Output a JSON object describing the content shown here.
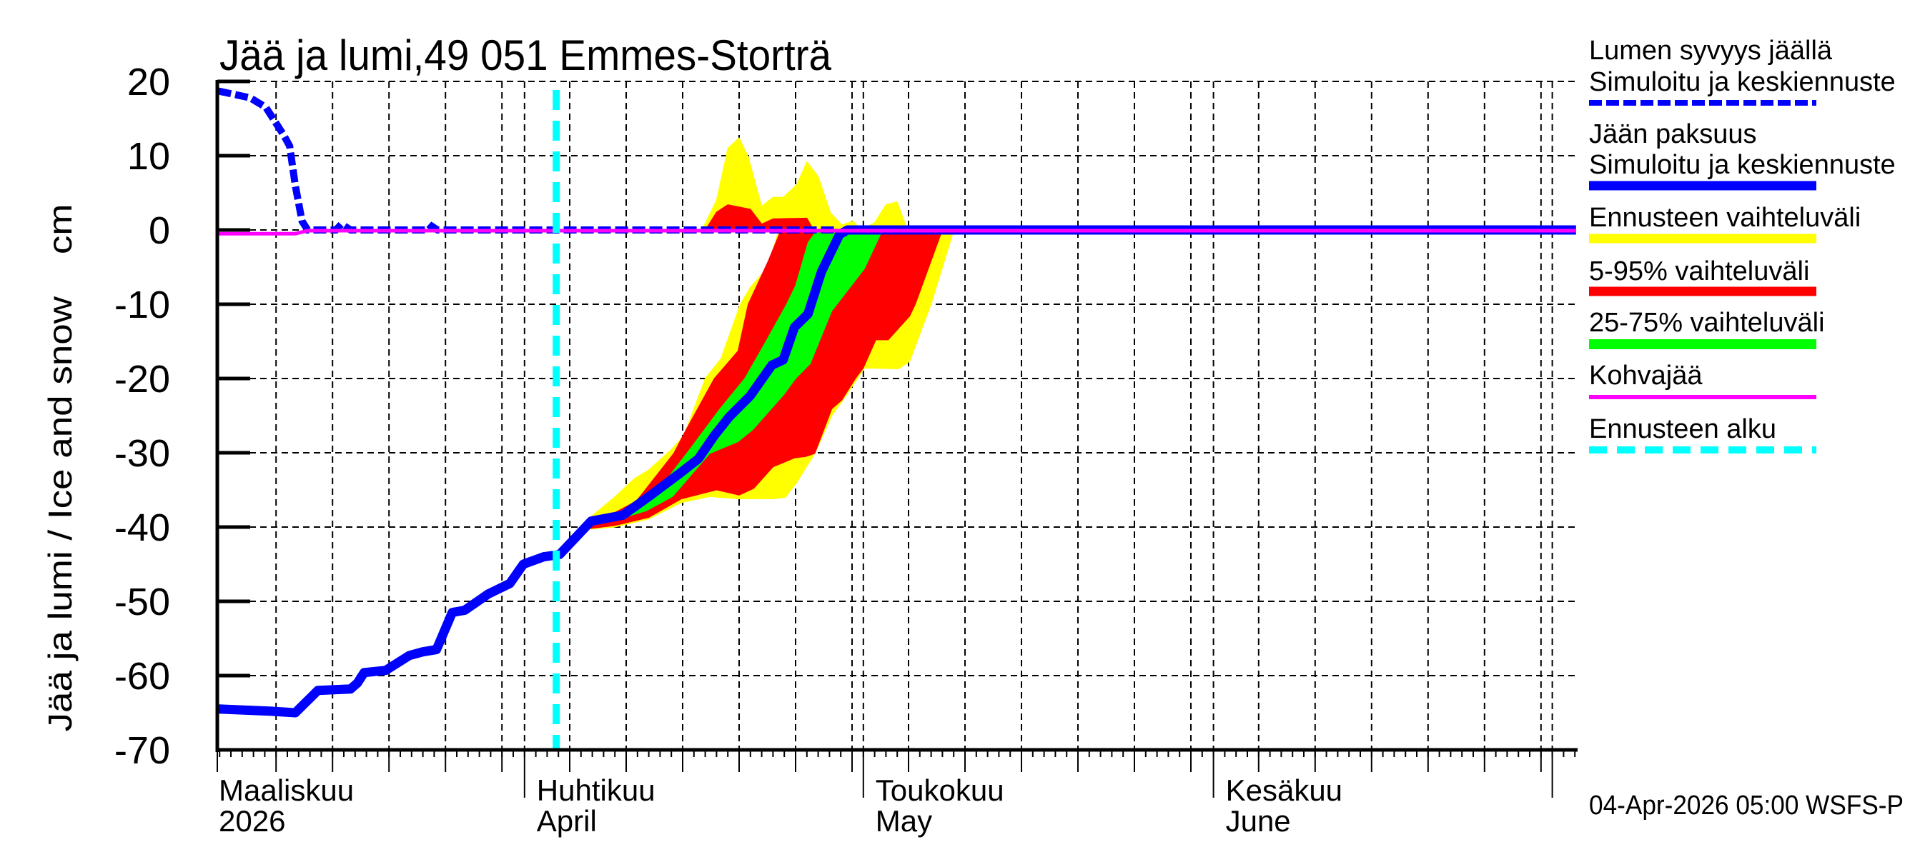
{
  "chart_data": {
    "type": "area",
    "title": "Jää ja lumi,49 051 Emmes-Storträ",
    "ylabel": "Jää ja lumi / Ice and snow    cm",
    "xlabel": "",
    "ylim": [
      -70,
      20
    ],
    "yticks": [
      20,
      10,
      0,
      -10,
      -20,
      -30,
      -40,
      -50,
      -60,
      -70
    ],
    "x_unit": "days since 1 March 2026",
    "xlim": [
      3.9,
      124.1
    ],
    "grid": true,
    "legend_position": "right",
    "month_labels": [
      {
        "day": 0,
        "fi": "Maaliskuu",
        "en": "2026"
      },
      {
        "day": 31,
        "fi": "Huhtikuu",
        "en": "April"
      },
      {
        "day": 61,
        "fi": "Toukokuu",
        "en": "May"
      },
      {
        "day": 92,
        "fi": "Kesäkuu",
        "en": "June"
      }
    ],
    "month_starts": [
      0,
      31,
      61,
      92,
      122
    ],
    "grid_days": [
      9,
      14,
      19,
      24,
      29,
      31,
      35,
      40,
      45,
      50,
      55,
      60,
      61,
      65,
      70,
      75,
      80,
      85,
      90,
      92,
      96,
      101,
      106,
      111,
      116,
      121,
      122
    ],
    "forecast_start_day": 34,
    "series": [
      {
        "name": "Lumen syvyys jäällä — Simuloitu ja keskiennuste",
        "color": "#0000ff",
        "style": "dashed",
        "points": [
          [
            3.9,
            18.7
          ],
          [
            6.7,
            17.8
          ],
          [
            8.1,
            16.5
          ],
          [
            9.7,
            12.7
          ],
          [
            10.2,
            11.3
          ],
          [
            10.7,
            6.0
          ],
          [
            11.3,
            1.2
          ],
          [
            11.8,
            0
          ],
          [
            14.3,
            0
          ],
          [
            14.8,
            0.8
          ],
          [
            15.6,
            0
          ],
          [
            22.5,
            0
          ],
          [
            22.8,
            0.5
          ],
          [
            23.3,
            0
          ],
          [
            58.7,
            0
          ]
        ]
      },
      {
        "name": "Jään paksuus — Simuloitu ja keskiennuste",
        "color": "#0000ff",
        "style": "solid",
        "points": [
          [
            3.9,
            -64.5
          ],
          [
            8.6,
            -64.8
          ],
          [
            10.7,
            -65.0
          ],
          [
            12.7,
            -62.0
          ],
          [
            15.6,
            -61.8
          ],
          [
            16.2,
            -61.0
          ],
          [
            16.8,
            -59.6
          ],
          [
            18.7,
            -59.3
          ],
          [
            20.8,
            -57.3
          ],
          [
            22.0,
            -56.8
          ],
          [
            23.2,
            -56.5
          ],
          [
            24.6,
            -51.5
          ],
          [
            25.7,
            -51.2
          ],
          [
            27.8,
            -49.0
          ],
          [
            29.7,
            -47.6
          ],
          [
            30.9,
            -45.0
          ],
          [
            32.7,
            -44.0
          ],
          [
            34.1,
            -43.7
          ],
          [
            36.9,
            -39.2
          ],
          [
            39.7,
            -38.4
          ],
          [
            42.0,
            -35.9
          ],
          [
            44.9,
            -32.6
          ],
          [
            46.4,
            -30.8
          ],
          [
            47.8,
            -27.7
          ],
          [
            49.1,
            -25.2
          ],
          [
            51.0,
            -22.3
          ],
          [
            52.9,
            -18.2
          ],
          [
            53.9,
            -17.5
          ],
          [
            54.9,
            -13.1
          ],
          [
            56.1,
            -11.3
          ],
          [
            57.3,
            -5.6
          ],
          [
            58.9,
            -0.6
          ],
          [
            59.6,
            0
          ],
          [
            124.1,
            0
          ]
        ]
      },
      {
        "name": "Kohvajää",
        "color": "#ff00ff",
        "style": "solid",
        "points": [
          [
            3.9,
            -0.5
          ],
          [
            10.7,
            -0.5
          ],
          [
            11.8,
            -0.1
          ],
          [
            124.1,
            -0.1
          ]
        ]
      }
    ],
    "bands": [
      {
        "name": "Ennusteen vaihteluväli",
        "color": "#ffff00",
        "polygons": [
          [
            [
              36.5,
              -40
            ],
            [
              36.8,
              -38.7
            ],
            [
              39.1,
              -35.8
            ],
            [
              40.7,
              -33.5
            ],
            [
              42.0,
              -32.3
            ],
            [
              43.9,
              -29.7
            ],
            [
              45.1,
              -27.7
            ],
            [
              47.0,
              -20
            ],
            [
              48.4,
              -17.3
            ],
            [
              50.1,
              -10
            ],
            [
              51.0,
              -7.7
            ],
            [
              52.6,
              -4.9
            ],
            [
              53.5,
              0
            ],
            [
              68.9,
              0
            ],
            [
              68.9,
              -0.6
            ],
            [
              67.0,
              -10
            ],
            [
              65.1,
              -17.7
            ],
            [
              64.1,
              -18.7
            ],
            [
              61.1,
              -18.6
            ],
            [
              59.2,
              -22.9
            ],
            [
              58.2,
              -25
            ],
            [
              56.7,
              -30.1
            ],
            [
              55.1,
              -34
            ],
            [
              54.1,
              -36
            ],
            [
              53.0,
              -36.2
            ],
            [
              50.0,
              -36.2
            ],
            [
              47.4,
              -35.9
            ],
            [
              44.9,
              -36.7
            ],
            [
              42.0,
              -38.9
            ],
            [
              39.0,
              -40
            ],
            [
              36.8,
              -40.3
            ]
          ],
          [
            [
              46.7,
              0
            ],
            [
              48.0,
              4.0
            ],
            [
              49.0,
              11.0
            ],
            [
              50.0,
              12.4
            ],
            [
              50.8,
              9.9
            ],
            [
              52.0,
              3.2
            ],
            [
              53.0,
              4.4
            ],
            [
              53.9,
              4.4
            ],
            [
              55.1,
              6.1
            ],
            [
              56.0,
              9.2
            ],
            [
              57.0,
              7.2
            ],
            [
              58.1,
              2.3
            ],
            [
              59.1,
              0.7
            ],
            [
              60.1,
              1.2
            ],
            [
              60.8,
              0
            ],
            [
              62.0,
              1.0
            ],
            [
              63.0,
              3.4
            ],
            [
              64.0,
              3.8
            ],
            [
              64.9,
              0
            ]
          ]
        ]
      },
      {
        "name": "5-95% vaihteluväli",
        "color": "#ff0000",
        "polygons": [
          [
            [
              36.6,
              -40
            ],
            [
              40.9,
              -36.5
            ],
            [
              44.2,
              -30.1
            ],
            [
              45.3,
              -26.9
            ],
            [
              47.8,
              -20
            ],
            [
              49.9,
              -16.3
            ],
            [
              50.8,
              -10
            ],
            [
              52.6,
              -4.1
            ],
            [
              53.7,
              0
            ],
            [
              68.0,
              0
            ],
            [
              65.6,
              -10
            ],
            [
              65.1,
              -11.6
            ],
            [
              63.2,
              -14.8
            ],
            [
              62.1,
              -14.8
            ],
            [
              61.0,
              -18.6
            ],
            [
              60.3,
              -20
            ],
            [
              59.1,
              -22.9
            ],
            [
              58.2,
              -24.1
            ],
            [
              56.7,
              -30.1
            ],
            [
              55.9,
              -30.5
            ],
            [
              54.9,
              -30.7
            ],
            [
              53.0,
              -31.9
            ],
            [
              51.3,
              -34.8
            ],
            [
              50.0,
              -35.7
            ],
            [
              48.0,
              -35.0
            ],
            [
              44.9,
              -36.2
            ],
            [
              42.0,
              -38.7
            ],
            [
              39.0,
              -39.8
            ],
            [
              36.8,
              -40.2
            ]
          ],
          [
            [
              47.0,
              0
            ],
            [
              48.0,
              2.4
            ],
            [
              49.0,
              3.4
            ],
            [
              51.0,
              2.8
            ],
            [
              52.0,
              0.8
            ],
            [
              53.0,
              1.5
            ],
            [
              56.0,
              1.6
            ],
            [
              56.6,
              0
            ]
          ]
        ]
      },
      {
        "name": "25-75% vaihteluväli",
        "color": "#00ff00",
        "polygons": [
          [
            [
              40.3,
              -37.5
            ],
            [
              42.6,
              -35.5
            ],
            [
              45.5,
              -29.8
            ],
            [
              48.3,
              -24.1
            ],
            [
              50.5,
              -20
            ],
            [
              52.3,
              -15.2
            ],
            [
              54.2,
              -10
            ],
            [
              55.0,
              -7.5
            ],
            [
              56.1,
              -1.7
            ],
            [
              56.9,
              0
            ],
            [
              62.7,
              0
            ],
            [
              61.1,
              -5.2
            ],
            [
              58.2,
              -10.9
            ],
            [
              56.3,
              -18
            ],
            [
              55.0,
              -20
            ],
            [
              54.0,
              -22.1
            ],
            [
              51.2,
              -26.9
            ],
            [
              49.9,
              -28.5
            ],
            [
              47.4,
              -30.1
            ],
            [
              44.1,
              -35.9
            ],
            [
              41.8,
              -37.8
            ],
            [
              40.3,
              -38.5
            ]
          ]
        ]
      }
    ]
  },
  "legend": {
    "items": [
      {
        "line1": "Lumen syvyys jäällä",
        "line2": "Simuloitu ja keskiennuste",
        "color": "#0000ff",
        "style": "dashed"
      },
      {
        "line1": "Jään paksuus",
        "line2": "Simuloitu ja keskiennuste",
        "color": "#0000ff",
        "style": "solid"
      },
      {
        "line1": "Ennusteen vaihteluväli",
        "color": "#ffff00",
        "style": "solid"
      },
      {
        "line1": "5-95% vaihteluväli",
        "color": "#ff0000",
        "style": "solid"
      },
      {
        "line1": "25-75% vaihteluväli",
        "color": "#00ff00",
        "style": "solid"
      },
      {
        "line1": "Kohvajää",
        "color": "#ff00ff",
        "style": "thin"
      },
      {
        "line1": "Ennusteen alku",
        "color": "#00ffff",
        "style": "dashed"
      }
    ]
  },
  "footer": "04-Apr-2026 05:00 WSFS-P"
}
